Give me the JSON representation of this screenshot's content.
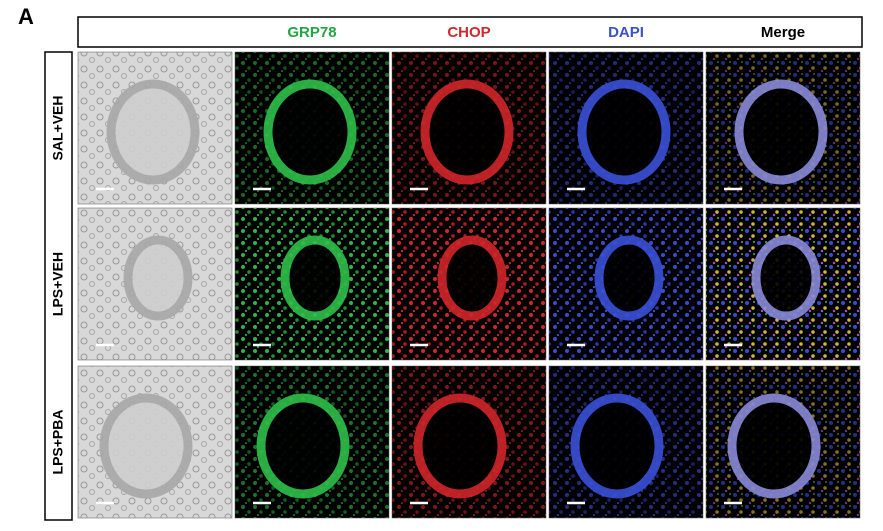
{
  "panel_label": "A",
  "columns": [
    "GRP78",
    "CHOP",
    "DAPI",
    "Merge"
  ],
  "rows": [
    "SAL+VEH",
    "LPS+VEH",
    "LPS+PBA"
  ]
}
